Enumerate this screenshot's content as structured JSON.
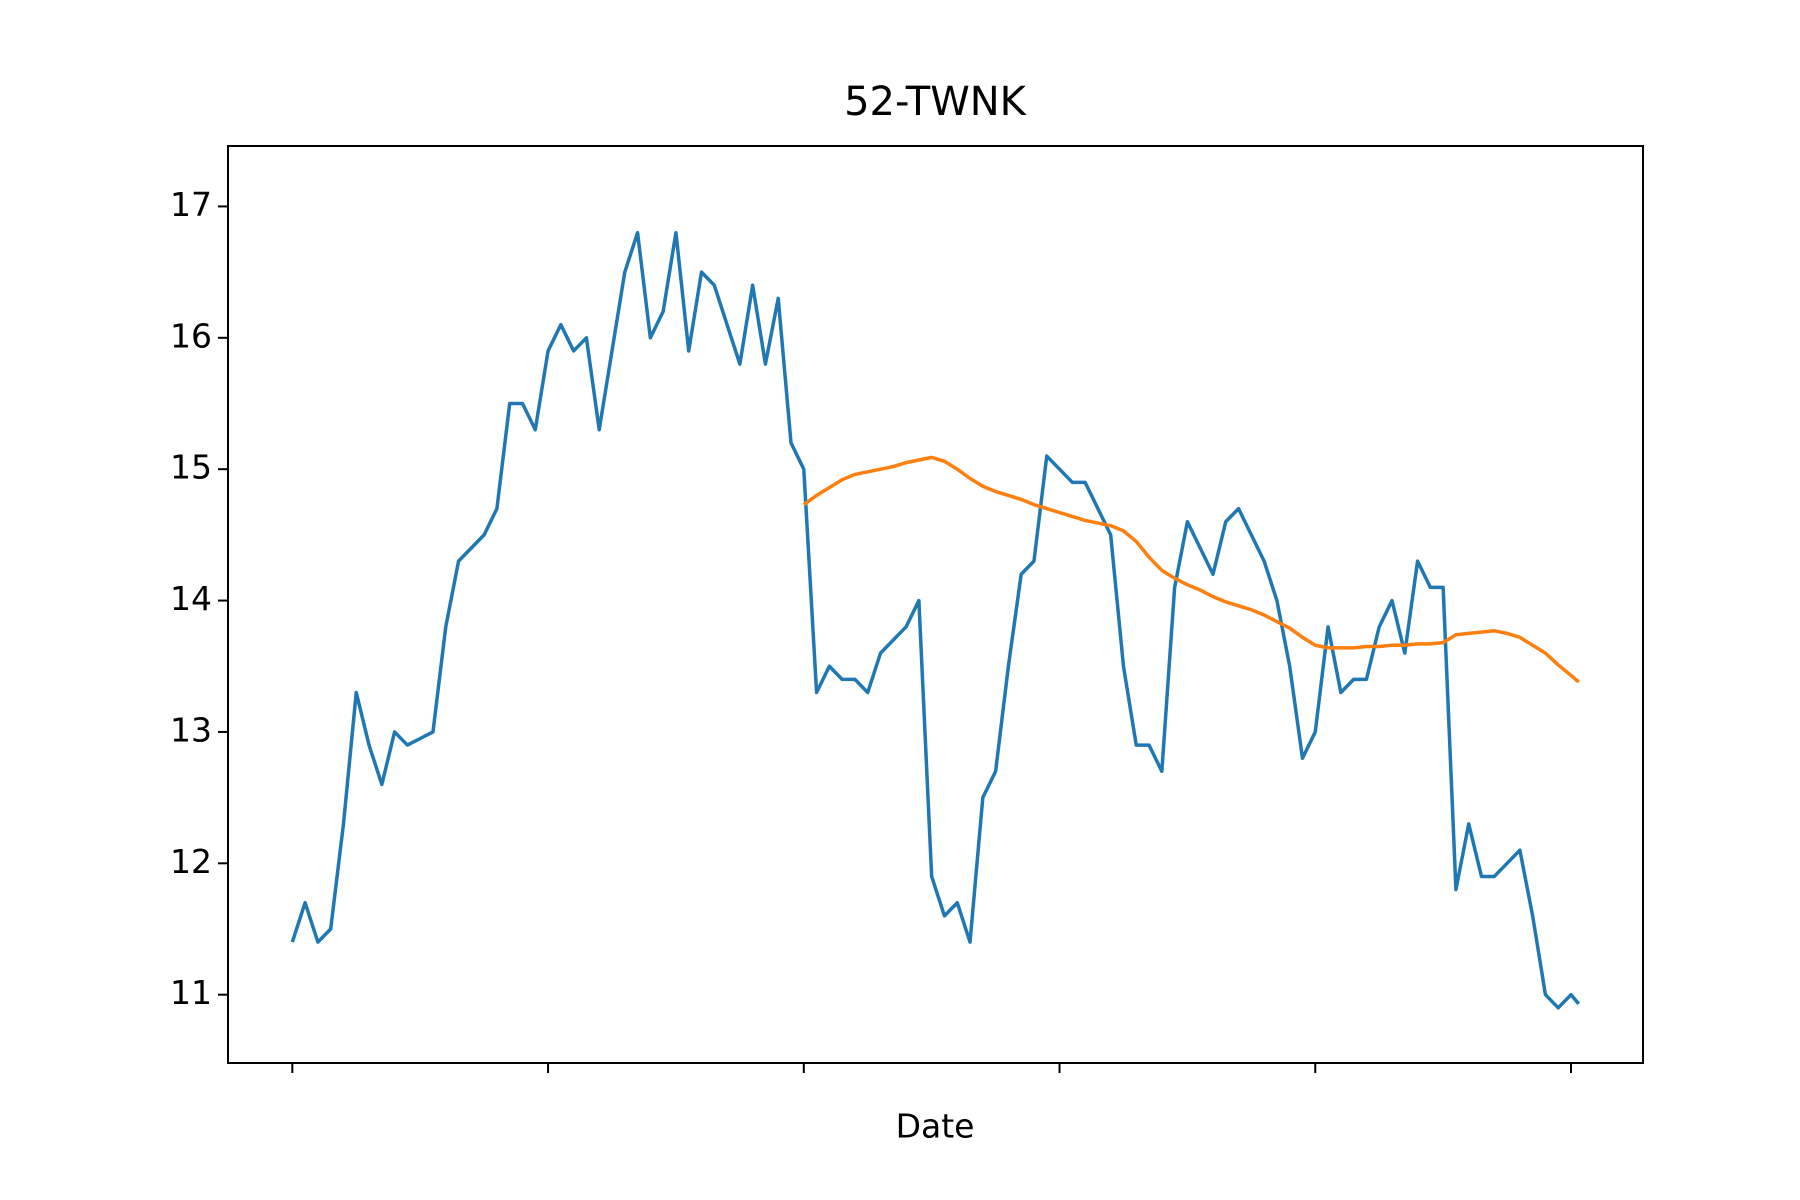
{
  "chart_data": {
    "type": "line",
    "title": "52-TWNK",
    "x_label": "Date",
    "x": [
      0,
      5,
      10,
      15,
      20,
      25,
      30,
      35,
      40,
      45,
      50,
      55,
      60,
      65,
      70,
      75,
      80,
      85,
      90,
      95,
      100,
      105,
      110,
      115,
      120,
      125,
      130,
      135,
      140,
      145,
      150,
      155,
      160,
      165,
      170,
      175,
      180,
      185,
      190,
      195,
      200,
      205,
      210,
      215,
      220,
      225,
      230,
      235,
      240,
      245,
      250,
      255,
      260,
      265,
      270,
      275,
      280,
      285,
      290,
      295,
      300,
      305,
      310,
      315,
      320,
      325,
      330,
      335,
      340,
      345,
      350,
      355,
      360,
      365,
      370,
      375,
      380,
      385,
      390,
      395,
      400,
      405,
      410,
      415,
      420,
      425,
      430,
      435,
      440,
      445,
      450,
      455,
      460,
      465,
      470,
      475,
      480,
      485,
      490,
      495,
      500,
      503
    ],
    "series": [
      {
        "color": "#1f77b4",
        "values": [
          11.4,
          11.7,
          11.4,
          11.5,
          12.3,
          13.3,
          12.9,
          12.6,
          13.0,
          12.9,
          12.95,
          13.0,
          13.8,
          14.3,
          14.4,
          14.5,
          14.7,
          15.5,
          15.5,
          15.3,
          15.9,
          16.1,
          15.9,
          16.0,
          15.3,
          15.9,
          16.5,
          16.8,
          16.0,
          16.2,
          16.8,
          15.9,
          16.5,
          16.4,
          16.1,
          15.8,
          16.4,
          15.8,
          16.3,
          15.2,
          15.0,
          13.3,
          13.5,
          13.4,
          13.4,
          13.3,
          13.6,
          13.7,
          13.8,
          14.0,
          11.9,
          11.6,
          11.7,
          11.4,
          12.5,
          12.7,
          13.5,
          14.2,
          14.3,
          15.1,
          15.0,
          14.9,
          14.9,
          14.7,
          14.5,
          13.5,
          12.9,
          12.9,
          12.7,
          14.1,
          14.6,
          14.4,
          14.2,
          14.6,
          14.7,
          14.5,
          14.3,
          14.0,
          13.5,
          12.8,
          13.0,
          13.8,
          13.3,
          13.4,
          13.4,
          13.8,
          14.0,
          13.6,
          14.3,
          14.1,
          14.1,
          11.8,
          12.3,
          11.9,
          11.9,
          12.0,
          12.1,
          11.6,
          11.0,
          10.9,
          11.0,
          10.93
        ]
      },
      {
        "color": "#ff7f0e",
        "values": [
          null,
          null,
          null,
          null,
          null,
          null,
          null,
          null,
          null,
          null,
          null,
          null,
          null,
          null,
          null,
          null,
          null,
          null,
          null,
          null,
          null,
          null,
          null,
          null,
          null,
          null,
          null,
          null,
          null,
          null,
          null,
          null,
          null,
          null,
          null,
          null,
          null,
          null,
          null,
          null,
          14.73,
          14.8,
          14.86,
          14.92,
          14.96,
          14.98,
          15.0,
          15.02,
          15.05,
          15.07,
          15.09,
          15.06,
          15.0,
          14.93,
          14.87,
          14.83,
          14.8,
          14.77,
          14.73,
          14.7,
          14.67,
          14.64,
          14.61,
          14.59,
          14.57,
          14.53,
          14.45,
          14.33,
          14.23,
          14.17,
          14.12,
          14.08,
          14.03,
          13.99,
          13.96,
          13.93,
          13.89,
          13.84,
          13.79,
          13.72,
          13.66,
          13.64,
          13.64,
          13.64,
          13.65,
          13.65,
          13.66,
          13.66,
          13.67,
          13.67,
          13.68,
          13.74,
          13.75,
          13.76,
          13.77,
          13.75,
          13.72,
          13.66,
          13.6,
          13.51,
          13.43,
          13.38
        ]
      }
    ],
    "xlim": [
      -25.15,
      528.15
    ],
    "xticks": [
      0,
      100,
      200,
      300,
      400,
      500
    ],
    "ylim": [
      10.48,
      17.46
    ],
    "yticks": [
      11,
      12,
      13,
      14,
      15,
      16,
      17
    ],
    "grid": false
  }
}
